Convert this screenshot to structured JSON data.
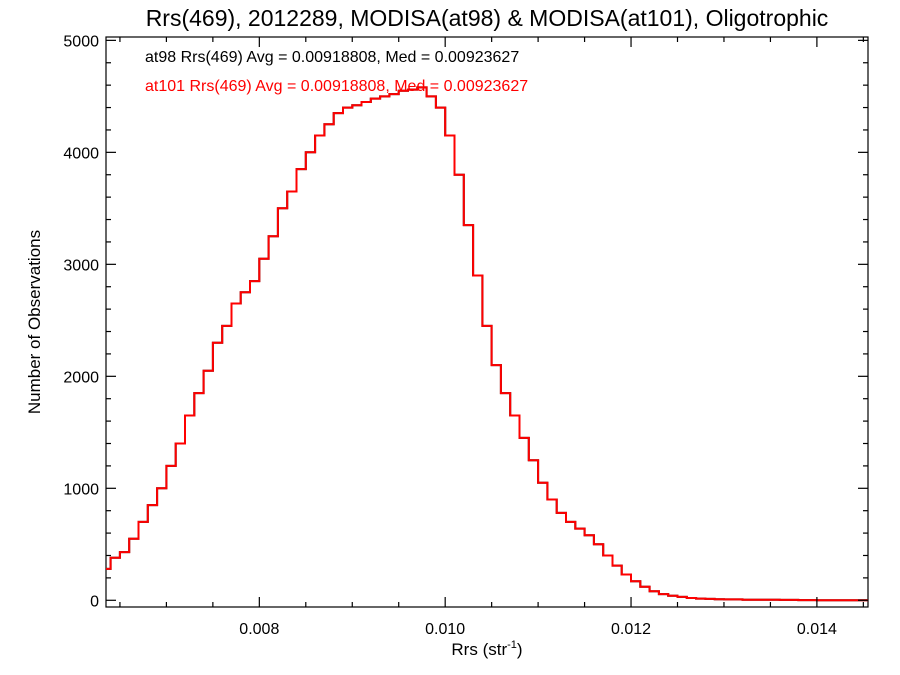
{
  "chart_data": {
    "type": "line",
    "title": "Rrs(469), 2012289, MODISA(at98) & MODISA(at101), Oligotrophic",
    "xlabel_base": "Rrs (str",
    "xlabel_sup": "-1",
    "xlabel_tail": ")",
    "ylabel": "Number of Observations",
    "xlim": [
      0.00635,
      0.01455
    ],
    "ylim": [
      -60,
      5030
    ],
    "xticks": [
      {
        "value": 0.008,
        "label": "0.008"
      },
      {
        "value": 0.01,
        "label": "0.010"
      },
      {
        "value": 0.012,
        "label": "0.012"
      },
      {
        "value": 0.014,
        "label": "0.014"
      }
    ],
    "yticks": [
      {
        "value": 0,
        "label": "0"
      },
      {
        "value": 1000,
        "label": "1000"
      },
      {
        "value": 2000,
        "label": "2000"
      },
      {
        "value": 3000,
        "label": "3000"
      },
      {
        "value": 4000,
        "label": "4000"
      },
      {
        "value": 5000,
        "label": "5000"
      }
    ],
    "grid": false,
    "legend_position": "top-left",
    "series": [
      {
        "name": "at98",
        "label": "at98 Rrs(469) Avg = 0.00918808, Med = 0.00923627",
        "color": "#000000",
        "step": "histogram",
        "x": [
          0.00635,
          0.0064,
          0.0065,
          0.0066,
          0.0067,
          0.0068,
          0.0069,
          0.007,
          0.0071,
          0.0072,
          0.0073,
          0.0074,
          0.0075,
          0.0076,
          0.0077,
          0.0078,
          0.0079,
          0.008,
          0.0081,
          0.0082,
          0.0083,
          0.0084,
          0.0085,
          0.0086,
          0.0087,
          0.0088,
          0.0089,
          0.009,
          0.0091,
          0.0092,
          0.0093,
          0.0094,
          0.0095,
          0.0096,
          0.0097,
          0.0098,
          0.0099,
          0.01,
          0.0101,
          0.0102,
          0.0103,
          0.0104,
          0.0105,
          0.0106,
          0.0107,
          0.0108,
          0.0109,
          0.011,
          0.0111,
          0.0112,
          0.0113,
          0.0114,
          0.0115,
          0.0116,
          0.0117,
          0.0118,
          0.0119,
          0.012,
          0.0121,
          0.0122,
          0.0123,
          0.0124,
          0.0125,
          0.0126,
          0.0127,
          0.0128,
          0.0129,
          0.013,
          0.0132,
          0.0134,
          0.0136,
          0.0138,
          0.014,
          0.01455
        ],
        "y": [
          280,
          380,
          430,
          550,
          700,
          850,
          1000,
          1200,
          1400,
          1650,
          1850,
          2050,
          2300,
          2450,
          2650,
          2750,
          2850,
          3050,
          3250,
          3500,
          3650,
          3850,
          4000,
          4150,
          4250,
          4350,
          4400,
          4420,
          4450,
          4480,
          4500,
          4520,
          4550,
          4560,
          4580,
          4500,
          4400,
          4150,
          3800,
          3350,
          2900,
          2450,
          2100,
          1850,
          1650,
          1450,
          1250,
          1050,
          900,
          780,
          700,
          640,
          580,
          500,
          400,
          310,
          230,
          170,
          120,
          80,
          55,
          40,
          30,
          20,
          15,
          12,
          10,
          8,
          5,
          4,
          3,
          2,
          1,
          0
        ]
      },
      {
        "name": "at101",
        "label": "at101 Rrs(469) Avg = 0.00918808, Med = 0.00923627",
        "color": "#ff0000",
        "step": "histogram",
        "x": [
          0.00635,
          0.0064,
          0.0065,
          0.0066,
          0.0067,
          0.0068,
          0.0069,
          0.007,
          0.0071,
          0.0072,
          0.0073,
          0.0074,
          0.0075,
          0.0076,
          0.0077,
          0.0078,
          0.0079,
          0.008,
          0.0081,
          0.0082,
          0.0083,
          0.0084,
          0.0085,
          0.0086,
          0.0087,
          0.0088,
          0.0089,
          0.009,
          0.0091,
          0.0092,
          0.0093,
          0.0094,
          0.0095,
          0.0096,
          0.0097,
          0.0098,
          0.0099,
          0.01,
          0.0101,
          0.0102,
          0.0103,
          0.0104,
          0.0105,
          0.0106,
          0.0107,
          0.0108,
          0.0109,
          0.011,
          0.0111,
          0.0112,
          0.0113,
          0.0114,
          0.0115,
          0.0116,
          0.0117,
          0.0118,
          0.0119,
          0.012,
          0.0121,
          0.0122,
          0.0123,
          0.0124,
          0.0125,
          0.0126,
          0.0127,
          0.0128,
          0.0129,
          0.013,
          0.0132,
          0.0134,
          0.0136,
          0.0138,
          0.014,
          0.01455
        ],
        "y": [
          280,
          380,
          430,
          550,
          700,
          850,
          1000,
          1200,
          1400,
          1650,
          1850,
          2050,
          2300,
          2450,
          2650,
          2750,
          2850,
          3050,
          3250,
          3500,
          3650,
          3850,
          4000,
          4150,
          4250,
          4350,
          4400,
          4420,
          4450,
          4480,
          4500,
          4520,
          4550,
          4560,
          4580,
          4500,
          4400,
          4150,
          3800,
          3350,
          2900,
          2450,
          2100,
          1850,
          1650,
          1450,
          1250,
          1050,
          900,
          780,
          700,
          640,
          580,
          500,
          400,
          310,
          230,
          170,
          120,
          80,
          55,
          40,
          30,
          20,
          15,
          12,
          10,
          8,
          5,
          4,
          3,
          2,
          1,
          0
        ]
      }
    ]
  }
}
